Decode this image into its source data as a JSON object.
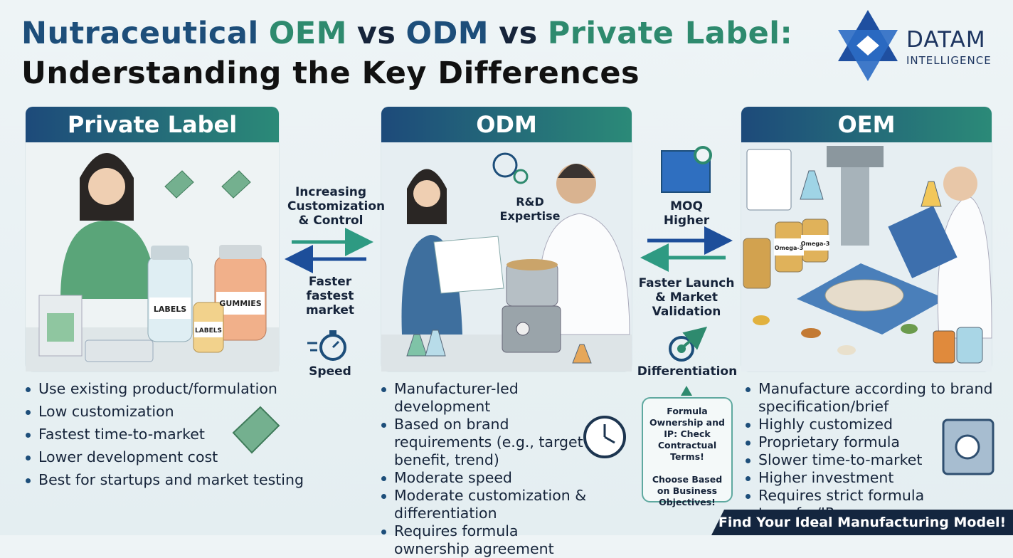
{
  "header": {
    "title_line1": [
      {
        "text": "Nutraceutical",
        "color": "#1d4e7a"
      },
      {
        "text": "OEM",
        "color": "#2e8a6e"
      },
      {
        "text": "vs",
        "color": "#16243a"
      },
      {
        "text": "ODM",
        "color": "#1d4e7a"
      },
      {
        "text": "vs",
        "color": "#16243a"
      },
      {
        "text": "Private Label:",
        "color": "#2e8a6e"
      }
    ],
    "title_line2": "Understanding the Key Differences"
  },
  "logo": {
    "name": "DATAM",
    "subtitle": "INTELLIGENCE"
  },
  "columns": [
    {
      "title": "Private Label",
      "bullets": [
        "Use existing product/formulation",
        "Low customization",
        "Fastest time-to-market",
        "Lower development cost",
        "Best for startups and market testing"
      ],
      "illustration_labels": [
        "LABELS",
        "GUMMIES",
        "LABELS"
      ]
    },
    {
      "title": "ODM",
      "bullets": [
        "Manufacturer-led development",
        "Based on brand requirements (e.g., target benefit, trend)",
        "Moderate speed",
        "Moderate customization & differentiation",
        "Requires formula ownership agreement"
      ],
      "illustration_labels": [
        "R&D Expertise"
      ]
    },
    {
      "title": "OEM",
      "bullets": [
        "Manufacture according to brand specification/brief",
        "Highly customized",
        "Proprietary formula",
        "Slower time-to-market",
        "Higher investment",
        "Requires strict formula transfer/IP"
      ],
      "illustration_labels": [
        "Omega-3",
        "Omega-3"
      ]
    }
  ],
  "transitions": [
    {
      "top": "Increasing Customization & Control",
      "bottom": "Faster fastest market",
      "icon_label": "Speed"
    },
    {
      "top": "MOQ Higher",
      "bottom": "Faster Launch & Market Validation",
      "icon_label": "Differentiation"
    }
  ],
  "note": {
    "lines": [
      "Formula Ownership and IP: Check Contractual Terms!",
      "Choose Based on Business Objectives!"
    ]
  },
  "footer": {
    "cta": "Find Your Ideal Manufacturing Model!"
  }
}
